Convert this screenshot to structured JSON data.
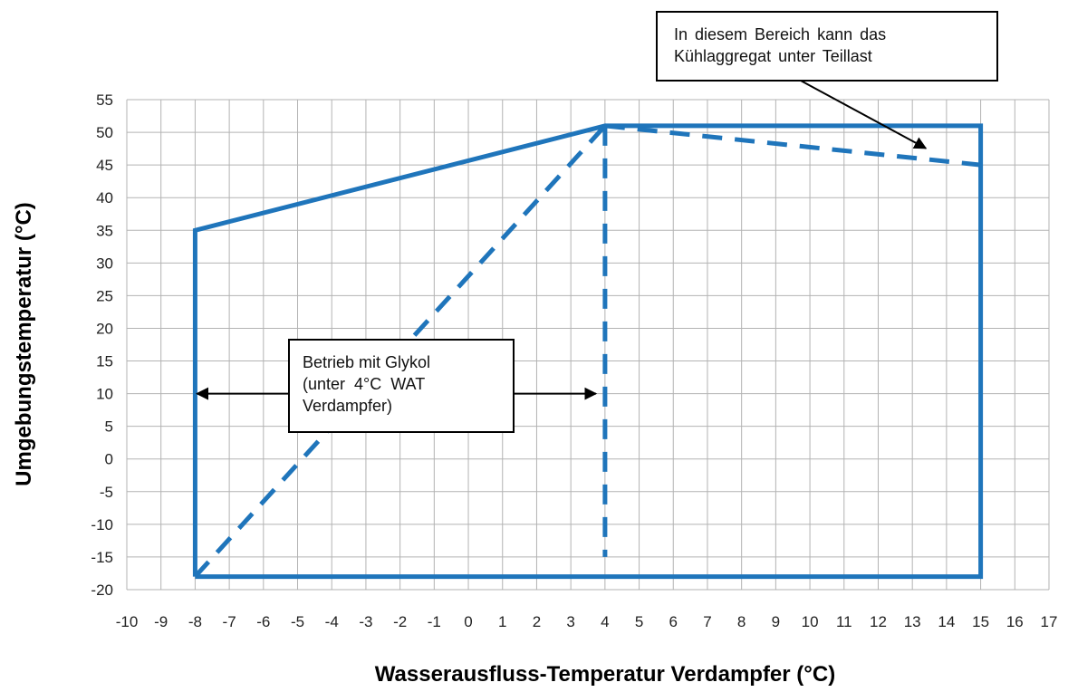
{
  "chart_data": {
    "type": "line",
    "xlabel": "Wasserausfluss-Temperatur Verdampfer (°C)",
    "ylabel": "Umgebungstemperatur (°C)",
    "xlim": [
      -10,
      17
    ],
    "ylim": [
      -20,
      55
    ],
    "x_ticks": [
      -10,
      -9,
      -8,
      -7,
      -6,
      -5,
      -4,
      -3,
      -2,
      -1,
      0,
      1,
      2,
      3,
      4,
      5,
      6,
      7,
      8,
      9,
      10,
      11,
      12,
      13,
      14,
      15,
      16,
      17
    ],
    "y_ticks": [
      55,
      50,
      45,
      40,
      35,
      30,
      25,
      20,
      15,
      10,
      5,
      0,
      -5,
      -10,
      -15,
      -20
    ],
    "grid": true,
    "color": "#1f75bb",
    "series": [
      {
        "style": "solid",
        "points": [
          [
            -8,
            -18
          ],
          [
            -8,
            35
          ],
          [
            4,
            51
          ],
          [
            15,
            51
          ],
          [
            15,
            -18
          ],
          [
            -8,
            -18
          ]
        ]
      },
      {
        "style": "dashed",
        "points": [
          [
            -8,
            -18
          ],
          [
            4,
            51
          ]
        ]
      },
      {
        "style": "dashed",
        "points": [
          [
            4,
            51
          ],
          [
            4,
            -15
          ]
        ]
      },
      {
        "style": "dashed",
        "points": [
          [
            4,
            51
          ],
          [
            15,
            45
          ]
        ]
      }
    ],
    "annotations": [
      {
        "id": "teillast",
        "lines": [
          "In diesem Bereich kann das",
          "Kühlaggregat unter Teillast"
        ],
        "arrow_to": [
          13.5,
          47
        ]
      },
      {
        "id": "glykol",
        "lines": [
          "Betrieb mit Glykol",
          "(unter  4°C  WAT",
          "Verdampfer)"
        ],
        "arrows_to": [
          [
            -8,
            10
          ],
          [
            4,
            10
          ]
        ]
      }
    ]
  }
}
